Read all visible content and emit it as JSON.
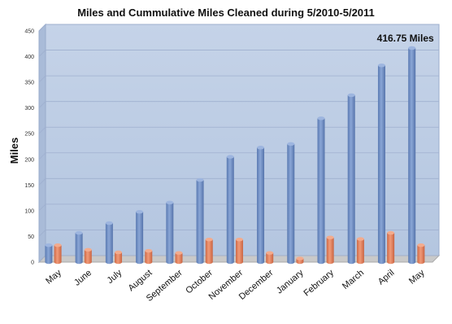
{
  "chart_data": {
    "type": "bar",
    "title": "Miles and Cummulative Miles Cleaned during 5/2010-5/2011",
    "xlabel": "",
    "ylabel": "Miles",
    "ylim": [
      0,
      450
    ],
    "yticks": [
      0,
      50,
      100,
      150,
      200,
      250,
      300,
      350,
      400,
      450
    ],
    "grid": true,
    "legend": "none",
    "categories": [
      "May",
      "June",
      "July",
      "August",
      "September",
      "October",
      "November",
      "December",
      "January",
      "February",
      "March",
      "April",
      "May"
    ],
    "series": [
      {
        "color": "#6f8fc4",
        "values": [
          33,
          57,
          76,
          98,
          116,
          160,
          205,
          223,
          230,
          280,
          325,
          383,
          416.75
        ]
      },
      {
        "color": "#e0805c",
        "values": [
          33,
          24,
          19,
          22,
          18,
          44,
          44,
          18,
          7,
          48,
          45,
          57,
          33
        ]
      }
    ],
    "annotations": [
      {
        "text": "416.75 Miles",
        "category_index": 12,
        "value": 416.75
      }
    ]
  }
}
